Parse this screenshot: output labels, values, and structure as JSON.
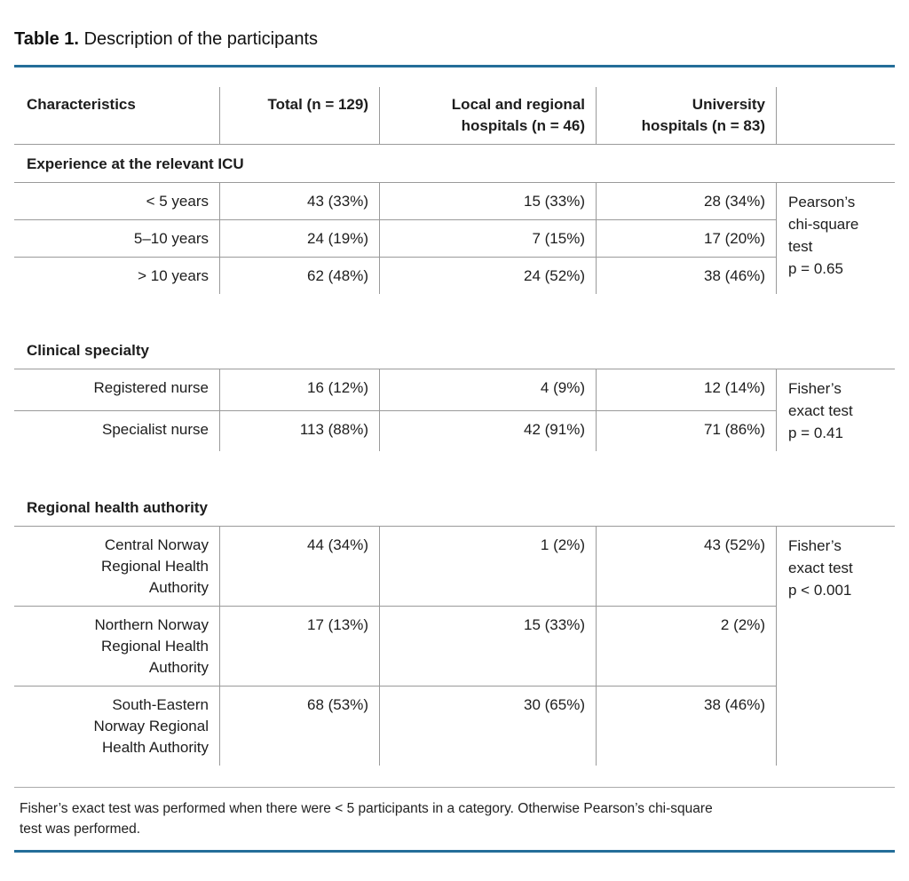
{
  "title": {
    "label": "Table 1.",
    "text": "Description of the participants"
  },
  "colors": {
    "accent_rule": "#246e99",
    "grid_line": "#9a9a9a",
    "text": "#1d1d1d"
  },
  "header": {
    "characteristics": "Characteristics",
    "total": "Total (n = 129)",
    "local": "Local and regional\nhospitals (n = 46)",
    "university": "University\nhospitals (n = 83)",
    "test": ""
  },
  "sections": [
    {
      "heading": "Experience at the relevant ICU",
      "test": "Pearson’s\nchi-square\ntest\np = 0.65",
      "rows": [
        {
          "label": "< 5 years",
          "total": "43 (33%)",
          "local": "15 (33%)",
          "university": "28 (34%)"
        },
        {
          "label": "5–10 years",
          "total": "24 (19%)",
          "local": "7 (15%)",
          "university": "17 (20%)"
        },
        {
          "label": "> 10 years",
          "total": "62 (48%)",
          "local": "24 (52%)",
          "university": "38 (46%)"
        }
      ]
    },
    {
      "heading": "Clinical specialty",
      "test": "Fisher’s\nexact test\np = 0.41",
      "rows": [
        {
          "label": "Registered nurse",
          "total": "16 (12%)",
          "local": "4 (9%)",
          "university": "12 (14%)"
        },
        {
          "label": "Specialist nurse",
          "total": "113 (88%)",
          "local": "42 (91%)",
          "university": "71 (86%)"
        }
      ]
    },
    {
      "heading": "Regional health authority",
      "test": "Fisher’s\nexact test\np < 0.001",
      "rows": [
        {
          "label": "Central Norway\nRegional Health\nAuthority",
          "total": "44 (34%)",
          "local": "1 (2%)",
          "university": "43 (52%)"
        },
        {
          "label": "Northern Norway\nRegional Health\nAuthority",
          "total": "17 (13%)",
          "local": "15 (33%)",
          "university": "2 (2%)"
        },
        {
          "label": "South-Eastern\nNorway Regional\nHealth Authority",
          "total": "68 (53%)",
          "local": "30 (65%)",
          "university": "38 (46%)"
        }
      ]
    }
  ],
  "footnote": "Fisher’s exact test was performed when there were < 5 participants in a category. Otherwise Pearson’s chi-square\ntest was performed."
}
